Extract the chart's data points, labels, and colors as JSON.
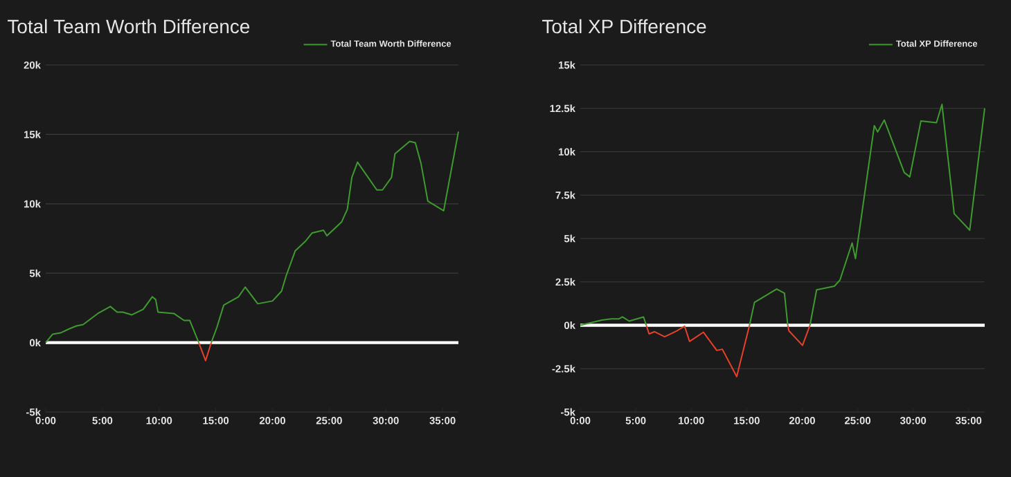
{
  "chart_data": [
    {
      "type": "line",
      "title": "Total Team Worth Difference",
      "legend": "top right",
      "grid": "y",
      "marker": "none",
      "line_style": "solid",
      "xlim": [
        0,
        36.4
      ],
      "ylim": [
        -5000,
        20000
      ],
      "xticks": [
        {
          "value": 0,
          "label": "0:00"
        },
        {
          "value": 5,
          "label": "5:00"
        },
        {
          "value": 10,
          "label": "10:00"
        },
        {
          "value": 15,
          "label": "15:00"
        },
        {
          "value": 20,
          "label": "20:00"
        },
        {
          "value": 25,
          "label": "25:00"
        },
        {
          "value": 30,
          "label": "30:00"
        },
        {
          "value": 35,
          "label": "35:00"
        }
      ],
      "yticks": [
        {
          "value": -5000,
          "label": "-5k"
        },
        {
          "value": 0,
          "label": "0k"
        },
        {
          "value": 5000,
          "label": "5k"
        },
        {
          "value": 10000,
          "label": "10k"
        },
        {
          "value": 15000,
          "label": "15k"
        },
        {
          "value": 20000,
          "label": "20k"
        }
      ],
      "ref_lines": [
        {
          "axis": "y",
          "value": 0,
          "color": "#ffffff"
        }
      ],
      "series": [
        {
          "name": "Total Team Worth Difference",
          "color": "#3f9b2f",
          "x": [
            0,
            0.6,
            1.3,
            2.1,
            2.7,
            3.3,
            4.6,
            5.7,
            6.3,
            6.8,
            7.6,
            8.6,
            9.4,
            9.7,
            9.9,
            11.3,
            12.2,
            12.7,
            13.5,
            14.1,
            14.6,
            15.1,
            15.7,
            17.0,
            17.6,
            18.7,
            20.0,
            20.8,
            21.2,
            22.0,
            22.9,
            23.5,
            24.5,
            24.8,
            26.1,
            26.6,
            27.0,
            27.5,
            29.2,
            29.7,
            30.5,
            30.8,
            32.1,
            32.6,
            33.1,
            33.7,
            35.1,
            36.4
          ],
          "values": [
            0,
            600,
            700,
            1000,
            1200,
            1300,
            2100,
            2600,
            2200,
            2200,
            2000,
            2400,
            3300,
            3100,
            2200,
            2100,
            1600,
            1600,
            0,
            null,
            0,
            1100,
            2700,
            3300,
            4000,
            2800,
            3000,
            3700,
            4800,
            6600,
            7300,
            7900,
            8100,
            7700,
            8700,
            9600,
            11900,
            13000,
            11000,
            11000,
            11900,
            13600,
            14500,
            14400,
            12900,
            10200,
            9500,
            15200
          ]
        },
        {
          "color": "#e8402a",
          "x": [
            13.5,
            14.1,
            14.6
          ],
          "values": [
            0,
            -1300,
            0
          ]
        }
      ]
    },
    {
      "type": "line",
      "title": "Total XP Difference",
      "legend": "top right",
      "grid": "y",
      "marker": "none",
      "line_style": "solid",
      "xlim": [
        0,
        36.45
      ],
      "ylim": [
        -5000,
        15000
      ],
      "xticks": [
        {
          "value": 0,
          "label": "0:00"
        },
        {
          "value": 5,
          "label": "5:00"
        },
        {
          "value": 10,
          "label": "10:00"
        },
        {
          "value": 15,
          "label": "15:00"
        },
        {
          "value": 20,
          "label": "20:00"
        },
        {
          "value": 25,
          "label": "25:00"
        },
        {
          "value": 30,
          "label": "30:00"
        },
        {
          "value": 35,
          "label": "35:00"
        }
      ],
      "yticks": [
        {
          "value": -5000,
          "label": "-5k"
        },
        {
          "value": -2500,
          "label": "-2.5k"
        },
        {
          "value": 0,
          "label": "0k"
        },
        {
          "value": 2500,
          "label": "2.5k"
        },
        {
          "value": 5000,
          "label": "5k"
        },
        {
          "value": 7500,
          "label": "7.5k"
        },
        {
          "value": 10000,
          "label": "10k"
        },
        {
          "value": 12500,
          "label": "12.5k"
        },
        {
          "value": 15000,
          "label": "15k"
        }
      ],
      "ref_lines": [
        {
          "axis": "y",
          "value": 0,
          "color": "#ffffff"
        }
      ],
      "series": [
        {
          "name": "Total XP Difference",
          "color": "#3f9b2f",
          "x": [
            0,
            1.95,
            2.8,
            3.5,
            3.8,
            4.4,
            5.7,
            5.95,
            10.0,
            15.25,
            15.7,
            17.7,
            18.4,
            18.7,
            19.5,
            20.7,
            21.3,
            22.9,
            23.4,
            24.5,
            24.8,
            26.5,
            26.8,
            27.4,
            29.2,
            29.7,
            30.7,
            32.1,
            32.6,
            33.7,
            35.1,
            36.45
          ],
          "values": [
            0,
            300,
            370,
            370,
            480,
            240,
            480,
            0,
            null,
            0,
            1320,
            2090,
            1850,
            0,
            null,
            0,
            2040,
            2250,
            2600,
            4740,
            3840,
            11500,
            11140,
            11830,
            8800,
            8550,
            11770,
            11670,
            12730,
            6430,
            5480,
            12500
          ]
        },
        {
          "color": "#e8402a",
          "x": [
            5.95,
            6.2,
            6.7,
            7.6,
            8.7,
            9.4,
            9.85,
            11.1,
            12.3,
            12.8,
            14.1,
            15.25,
            17.0,
            18.7,
            18.8,
            20.03,
            20.7
          ],
          "values": [
            0,
            -500,
            -370,
            -660,
            -320,
            -50,
            -930,
            -400,
            -1450,
            -1380,
            -2960,
            0,
            null,
            0,
            -320,
            -1160,
            0
          ]
        }
      ]
    }
  ]
}
